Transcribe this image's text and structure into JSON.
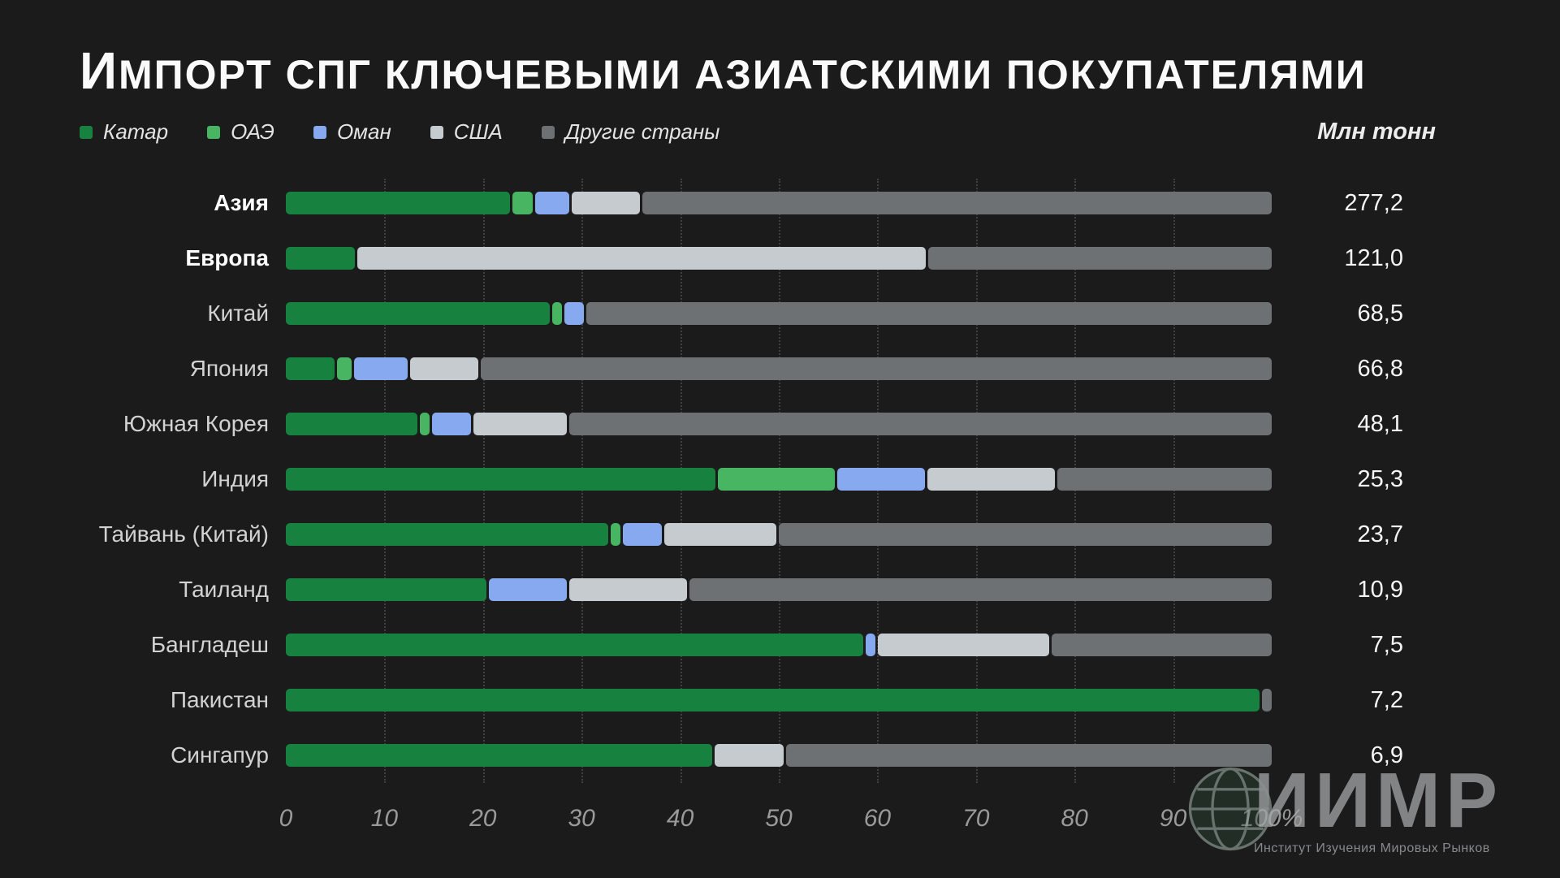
{
  "title": "Импорт СПГ ключевыми азиатскими покупателями",
  "unit_label": "Млн тонн",
  "colors": {
    "background": "#1b1b1c",
    "qatar": "#178140",
    "uae": "#47b561",
    "oman": "#86a9f0",
    "usa": "#c6cbd0",
    "others": "#6e7174"
  },
  "watermark": {
    "brand": "ИИМР",
    "subtitle": "Институт Изучения Мировых Рынков"
  },
  "chart_data": {
    "type": "bar",
    "orientation": "horizontal",
    "stacked": true,
    "percent_axis": true,
    "xlim": [
      0,
      100
    ],
    "x_ticks": [
      "0",
      "10",
      "20",
      "30",
      "40",
      "50",
      "60",
      "70",
      "80",
      "90",
      "100%"
    ],
    "categories": [
      "Азия",
      "Европа",
      "Китай",
      "Япония",
      "Южная Корея",
      "Индия",
      "Тайвань (Китай)",
      "Таиланд",
      "Бангладеш",
      "Пакистан",
      "Сингапур"
    ],
    "bold_rows": [
      "Азия",
      "Европа"
    ],
    "total_labels": [
      "277,2",
      "121,0",
      "68,5",
      "66,8",
      "48,1",
      "25,3",
      "23,7",
      "10,9",
      "7,5",
      "7,2",
      "6,9"
    ],
    "totals_mln_tonn": [
      277.2,
      121.0,
      68.5,
      66.8,
      48.1,
      25.3,
      23.7,
      10.9,
      7.5,
      7.2,
      6.9
    ],
    "series": [
      {
        "name": "Катар",
        "key": "qatar",
        "color": "#178140",
        "values": [
          23,
          7,
          27,
          5,
          13.5,
          44,
          33,
          20.5,
          59,
          99,
          43.5
        ]
      },
      {
        "name": "ОАЭ",
        "key": "uae",
        "color": "#47b561",
        "values": [
          2,
          0,
          1,
          1.5,
          1,
          12,
          1,
          0,
          0,
          0,
          0
        ]
      },
      {
        "name": "Оман",
        "key": "oman",
        "color": "#86a9f0",
        "values": [
          3.5,
          0,
          2,
          5.5,
          4,
          9,
          4,
          8,
          1,
          0,
          0
        ]
      },
      {
        "name": "США",
        "key": "usa",
        "color": "#c6cbd0",
        "values": [
          7,
          58,
          0,
          7,
          9.5,
          13,
          11.5,
          12,
          17.5,
          0,
          7
        ]
      },
      {
        "name": "Другие страны",
        "key": "others",
        "color": "#6e7174",
        "values": [
          64.5,
          35,
          70,
          81,
          72,
          22,
          50.5,
          59.5,
          22.5,
          1,
          49.5
        ]
      }
    ]
  }
}
